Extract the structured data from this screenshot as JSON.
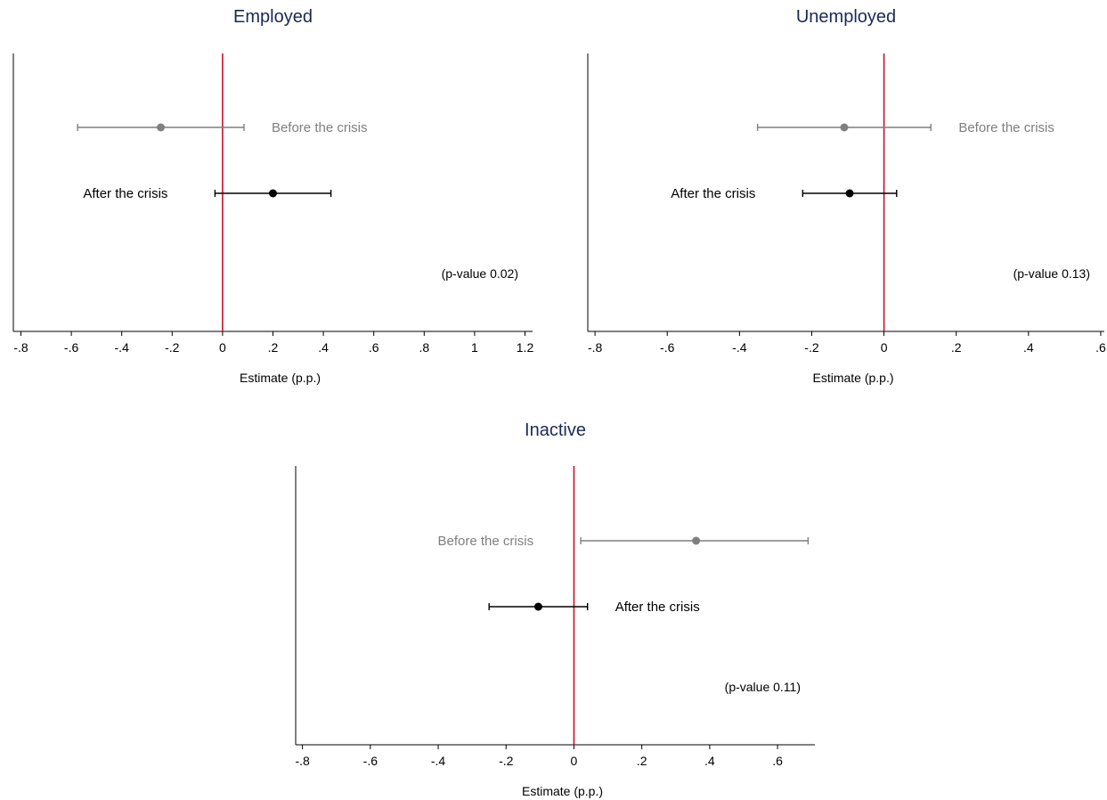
{
  "colors": {
    "zero_line": "#c8102e",
    "before": "#7f7f7f",
    "after": "#000000",
    "title": "#1a2a55",
    "axis": "#000000"
  },
  "chart_data": [
    {
      "type": "scatter",
      "subtype": "coefficient-plot-with-confidence-intervals",
      "title": "Employed",
      "xlabel": "Estimate (p.p.)",
      "xlim": [
        -0.83,
        1.23
      ],
      "xticks": [
        -0.8,
        -0.6,
        -0.4,
        -0.2,
        0,
        0.2,
        0.4,
        0.6,
        0.8,
        1,
        1.2
      ],
      "xtick_labels": [
        "-.8",
        "-.6",
        "-.4",
        "-.2",
        "0",
        ".2",
        ".4",
        ".6",
        ".8",
        "1",
        "1.2"
      ],
      "reference_line": 0,
      "annotation": "(p-value 0.02)",
      "series": [
        {
          "name": "Before the crisis",
          "estimate": -0.245,
          "ci": [
            -0.575,
            0.085
          ],
          "label_side": "right",
          "row": 1
        },
        {
          "name": "After the crisis",
          "estimate": 0.2,
          "ci": [
            -0.03,
            0.43
          ],
          "label_side": "left",
          "row": 2
        }
      ]
    },
    {
      "type": "scatter",
      "subtype": "coefficient-plot-with-confidence-intervals",
      "title": "Unemployed",
      "xlabel": "Estimate (p.p.)",
      "xlim": [
        -0.82,
        0.61
      ],
      "xticks": [
        -0.8,
        -0.6,
        -0.4,
        -0.2,
        0,
        0.2,
        0.4,
        0.6
      ],
      "xtick_labels": [
        "-.8",
        "-.6",
        "-.4",
        "-.2",
        "0",
        ".2",
        ".4",
        ".6"
      ],
      "reference_line": 0,
      "annotation": "(p-value 0.13)",
      "series": [
        {
          "name": "Before the crisis",
          "estimate": -0.11,
          "ci": [
            -0.35,
            0.13
          ],
          "label_side": "right",
          "row": 1
        },
        {
          "name": "After the crisis",
          "estimate": -0.095,
          "ci": [
            -0.225,
            0.035
          ],
          "label_side": "left",
          "row": 2
        }
      ]
    },
    {
      "type": "scatter",
      "subtype": "coefficient-plot-with-confidence-intervals",
      "title": "Inactive",
      "xlabel": "Estimate (p.p.)",
      "xlim": [
        -0.82,
        0.71
      ],
      "xticks": [
        -0.8,
        -0.6,
        -0.4,
        -0.2,
        0,
        0.2,
        0.4,
        0.6
      ],
      "xtick_labels": [
        "-.8",
        "-.6",
        "-.4",
        "-.2",
        "0",
        ".2",
        ".4",
        ".6"
      ],
      "reference_line": 0,
      "annotation": "(p-value 0.11)",
      "series": [
        {
          "name": "Before the crisis",
          "estimate": 0.36,
          "ci": [
            0.02,
            0.69
          ],
          "label_side": "left",
          "row": 1
        },
        {
          "name": "After the crisis",
          "estimate": -0.105,
          "ci": [
            -0.25,
            0.04
          ],
          "label_side": "right",
          "row": 2
        }
      ]
    }
  ]
}
